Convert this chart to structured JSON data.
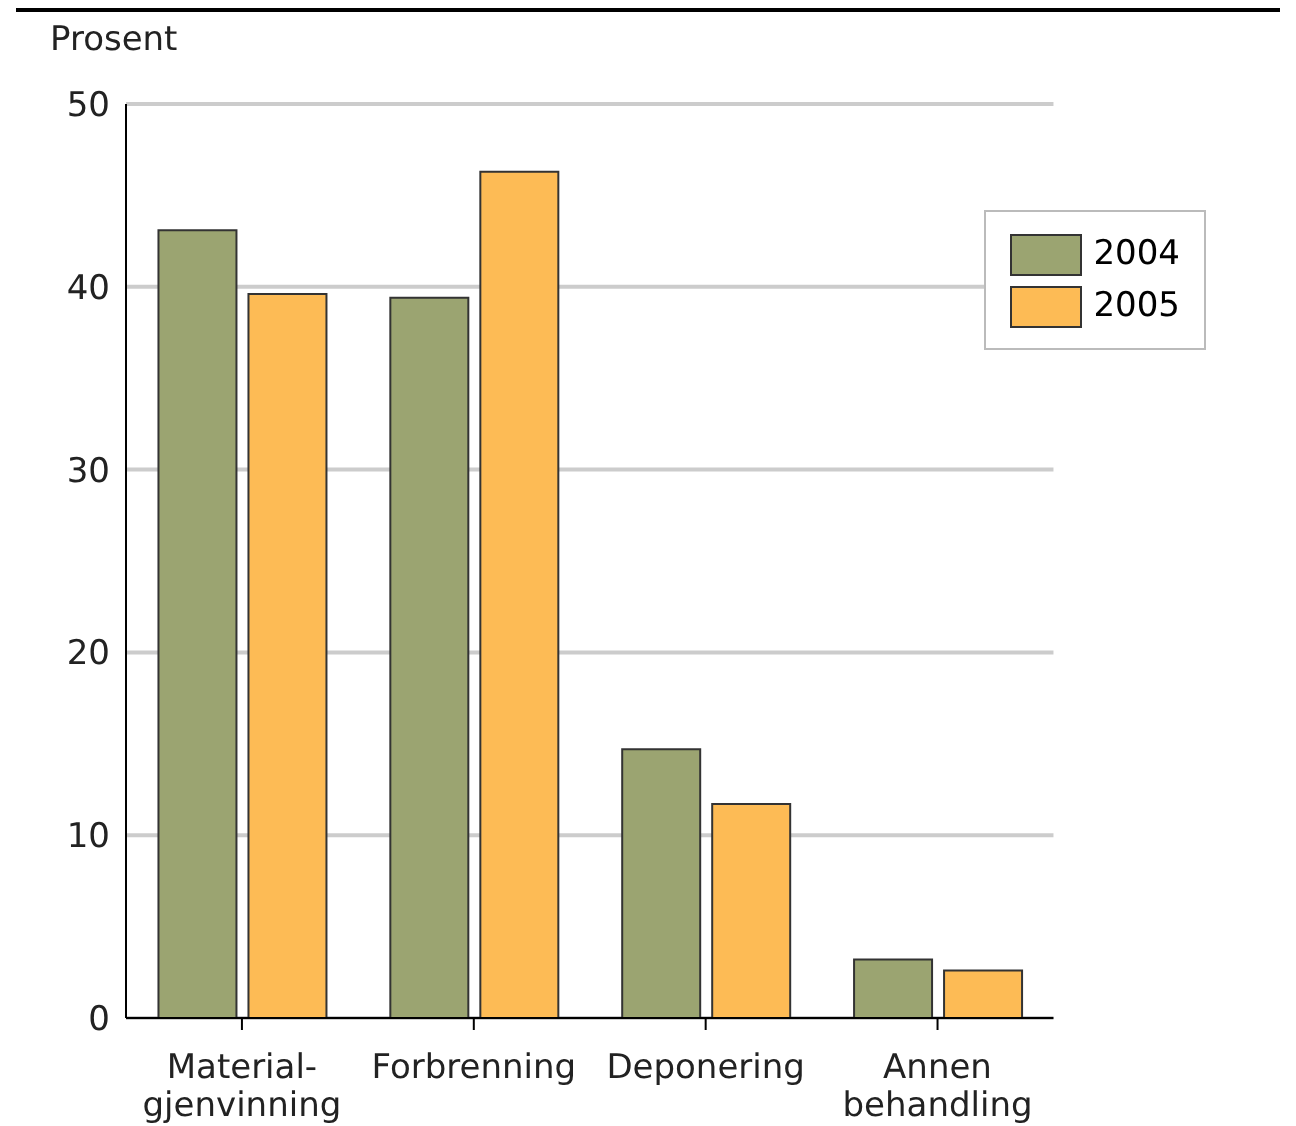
{
  "chart_data": {
    "type": "bar",
    "ylabel": "Prosent",
    "categories": [
      "Material-\ngjenvinning",
      "Forbrenning",
      "Deponering",
      "Annen\nbehandling"
    ],
    "series": [
      {
        "name": "2004",
        "color": "#9ba471",
        "values": [
          43.1,
          39.4,
          14.7,
          3.2
        ]
      },
      {
        "name": "2005",
        "color": "#fdbb55",
        "values": [
          39.6,
          46.3,
          11.7,
          2.6
        ]
      }
    ],
    "ylim": [
      0,
      50
    ],
    "yticks": [
      0,
      10,
      20,
      30,
      40,
      50
    ],
    "grid": "y",
    "legend": "top right"
  }
}
